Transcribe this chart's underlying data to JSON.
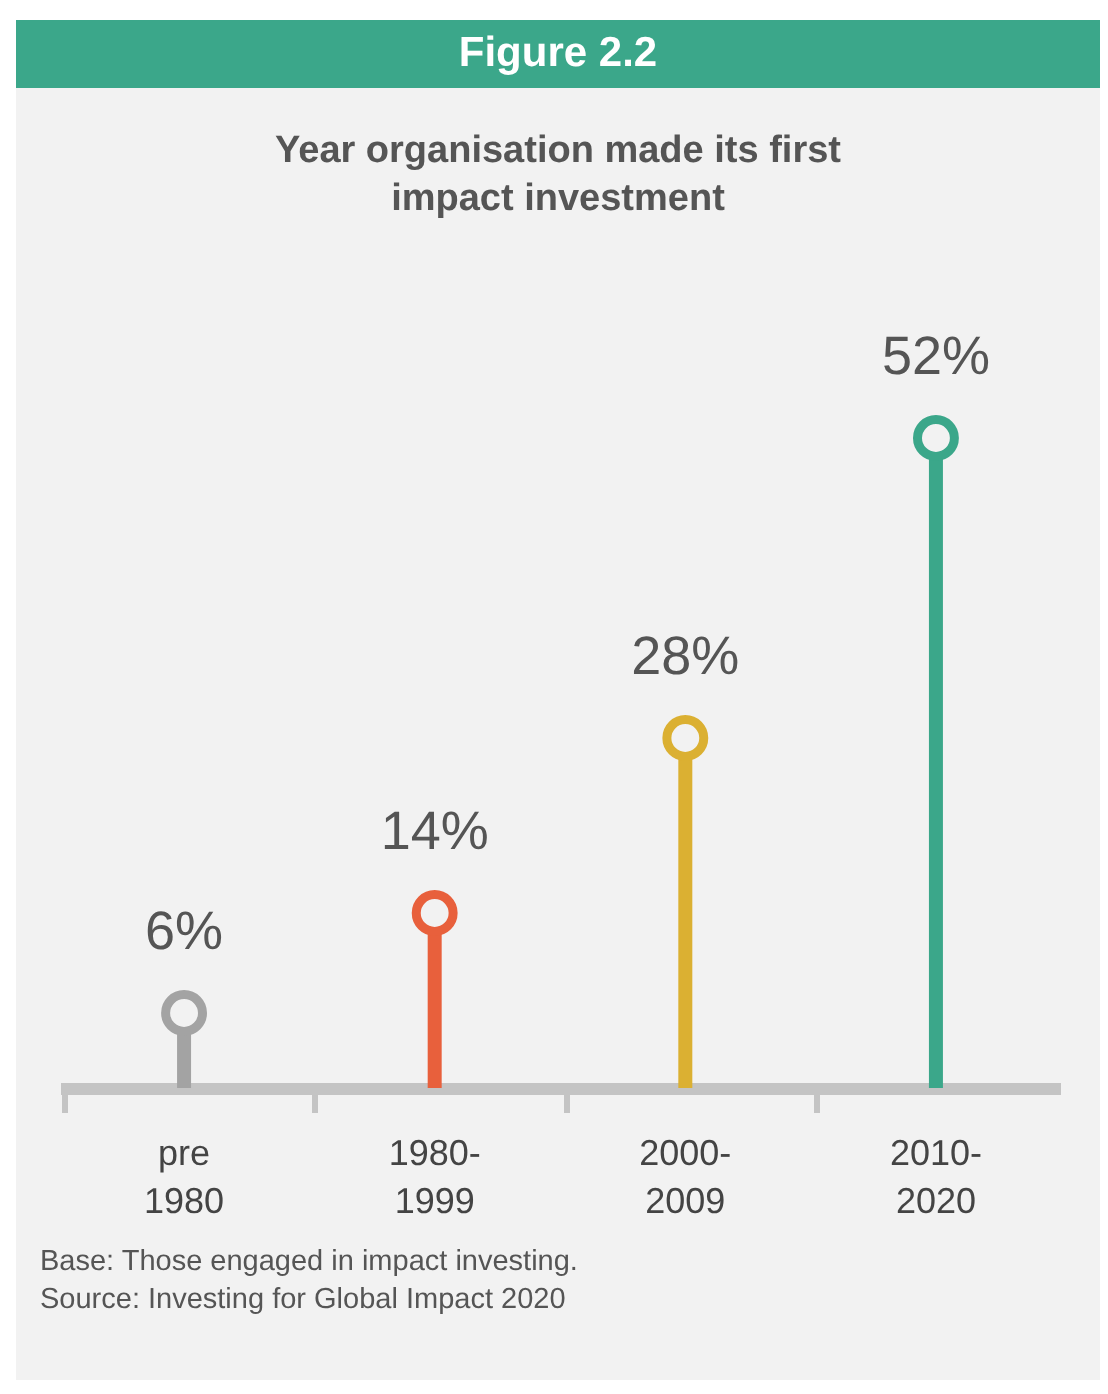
{
  "chart_data": {
    "type": "lollipop",
    "title": "Figure 2.2",
    "subtitle": "Year organisation made its first impact investment",
    "categories": [
      "pre 1980",
      "1980-1999",
      "2000-2009",
      "2010-2020"
    ],
    "values": [
      6,
      14,
      28,
      52
    ],
    "value_labels": [
      "6%",
      "14%",
      "28%",
      "52%"
    ],
    "colors": [
      "#a3a3a3",
      "#e8603c",
      "#dbb032",
      "#3ba78a"
    ],
    "marker": "circle",
    "annotations": [
      "Base: Those engaged in impact investing.",
      "Source: Investing for Global Impact 2020"
    ]
  }
}
